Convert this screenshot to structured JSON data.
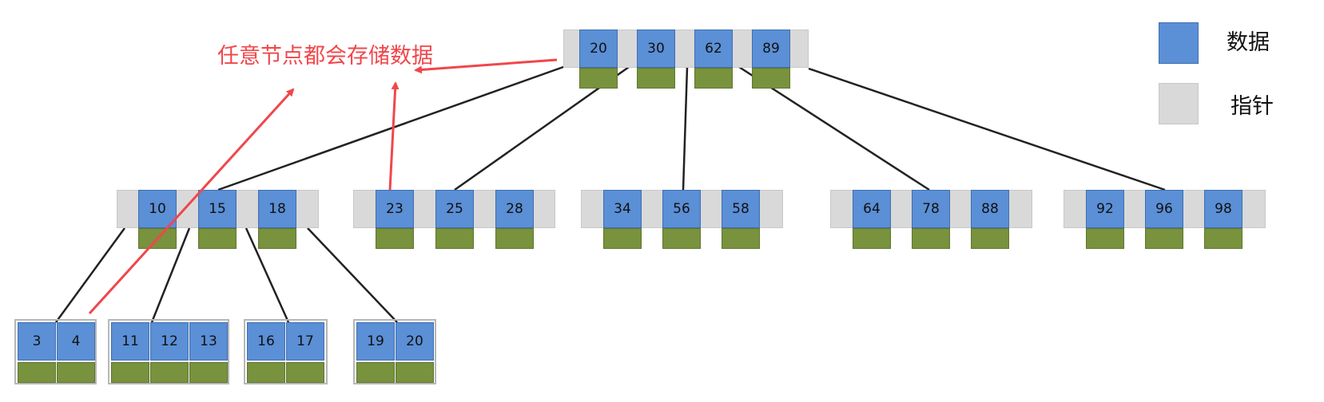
{
  "annotation": "任意节点都会存储数据",
  "legend": {
    "data": {
      "label": "数据",
      "color": "#5b8fd6"
    },
    "pointer": {
      "label": "指针",
      "color": "#d9d9d9"
    }
  },
  "colors": {
    "key": "#5b8fd6",
    "pointer": "#d9d9d9",
    "payload": "#78923d",
    "edge": "#222222",
    "arrow": "#f0474b"
  },
  "tree": {
    "root": [
      "20",
      "30",
      "62",
      "89"
    ],
    "internal": [
      [
        "10",
        "15",
        "18"
      ],
      [
        "23",
        "25",
        "28"
      ],
      [
        "34",
        "56",
        "58"
      ],
      [
        "64",
        "78",
        "88"
      ],
      [
        "92",
        "96",
        "98"
      ]
    ],
    "leaves": [
      [
        "3",
        "4"
      ],
      [
        "11",
        "12",
        "13"
      ],
      [
        "16",
        "17"
      ],
      [
        "19",
        "20"
      ]
    ]
  }
}
